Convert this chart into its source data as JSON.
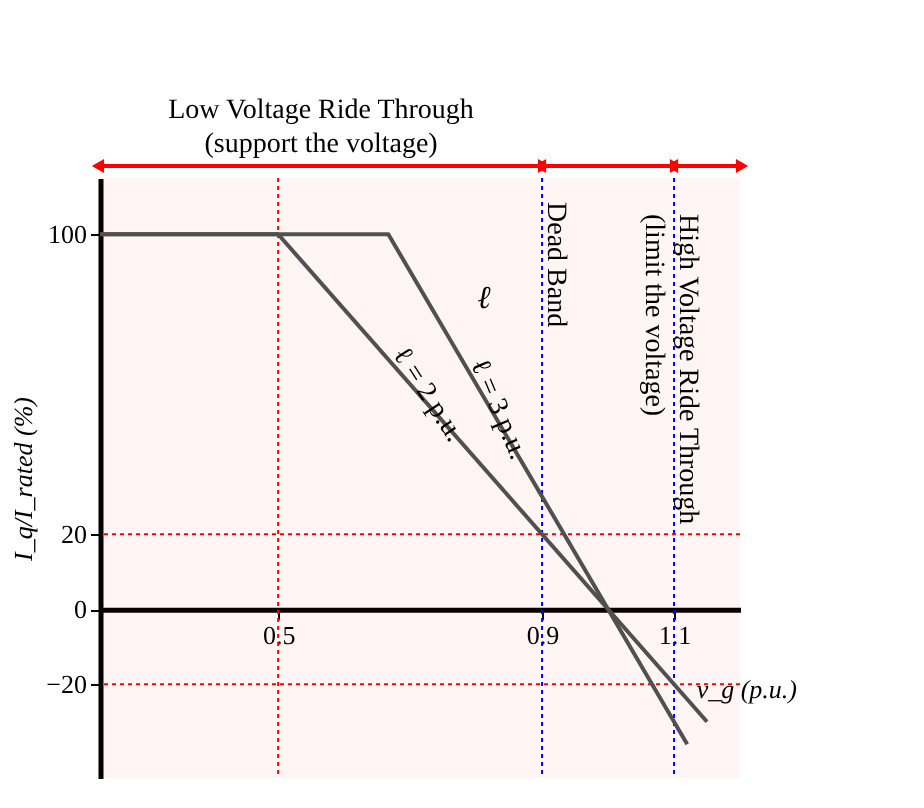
{
  "chart_data": {
    "type": "line",
    "xlabel": "v_g (p.u.)",
    "ylabel": "I_q/I_rated (%)",
    "series": [
      {
        "name": "ℓ = 2 p.u.",
        "color": "#505050",
        "x": [
          0.23,
          0.5,
          1.15
        ],
        "values": [
          100,
          100,
          -30
        ]
      },
      {
        "name": "ℓ = 3 p.u.",
        "color": "#505050",
        "x": [
          0.23,
          0.667,
          1.12
        ],
        "values": [
          100,
          100,
          -36
        ]
      }
    ],
    "xlim": [
      0.23,
      1.2
    ],
    "ylim": [
      -45,
      115
    ],
    "xticks": [
      0.5,
      0.9,
      1.1
    ],
    "yticks": [
      -20,
      0,
      20,
      100
    ],
    "ref_lines": [
      {
        "axis": "x",
        "value": 0.9,
        "color": "#0000ff",
        "line_style": "dotted"
      },
      {
        "axis": "x",
        "value": 1.1,
        "color": "#0000ff",
        "line_style": "dotted"
      },
      {
        "axis": "y",
        "value": 20,
        "color": "#ff0000",
        "line_style": "dotted"
      },
      {
        "axis": "y",
        "value": -20,
        "color": "#ff0000",
        "line_style": "dotted"
      },
      {
        "axis": "x",
        "value": 0.5,
        "color": "#ff0000",
        "line_style": "dotted"
      }
    ],
    "bands": [
      {
        "axis": "x",
        "from": 0.23,
        "to": 0.9,
        "label": "Low Voltage Ride Through\n(support the voltage)",
        "color": "#ff0000"
      },
      {
        "axis": "x",
        "from": 0.9,
        "to": 1.1,
        "label": "Dead Band",
        "color": "#ff0000"
      },
      {
        "axis": "x",
        "from": 1.1,
        "to": 1.2,
        "label": "High Voltage Ride Through\n(limit the voltage)",
        "color": "#ff0000"
      }
    ],
    "annotations": [
      "ℓ"
    ],
    "marker": "none",
    "line_style": "solid",
    "grid": false,
    "legend": false
  }
}
